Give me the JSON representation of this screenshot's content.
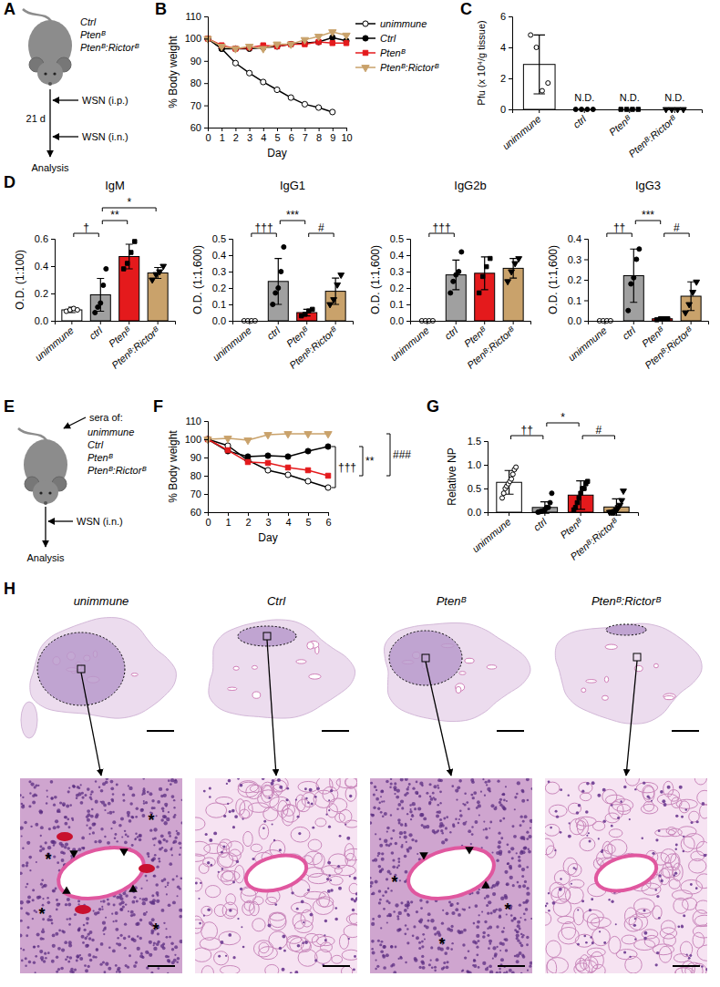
{
  "chart_data": [
    {
      "panel": "B",
      "type": "line",
      "x_label": "Day",
      "y_label": "% Body weight",
      "x": [
        0,
        1,
        2,
        3,
        4,
        5,
        6,
        7,
        8,
        9,
        10
      ],
      "xlim": [
        0,
        10
      ],
      "xticks": [
        0,
        1,
        2,
        3,
        4,
        5,
        6,
        7,
        8,
        9,
        10
      ],
      "ylim": [
        60,
        110
      ],
      "yticks": [
        60,
        70,
        80,
        90,
        100,
        110
      ],
      "legend": "right",
      "series": [
        {
          "name": "unimmune",
          "color": "#000000",
          "marker": "open-circle",
          "values": [
            100,
            95.5,
            89,
            84.5,
            80.5,
            77,
            73.5,
            70.5,
            69,
            67,
            null
          ]
        },
        {
          "name": "Ctrl",
          "color": "#000000",
          "marker": "circle",
          "values": [
            100,
            95.5,
            95.5,
            95.5,
            96,
            96.5,
            97.5,
            98,
            98.5,
            100.5,
            99
          ]
        },
        {
          "name": "Ptenᴮ",
          "color": "#e41a1c",
          "marker": "square",
          "values": [
            100,
            97,
            95.5,
            96,
            97,
            96.5,
            97.5,
            97.5,
            98.5,
            98,
            98
          ]
        },
        {
          "name": "Ptenᴮ:Rictorᴮ",
          "color": "#c9a26b",
          "marker": "triangle-down",
          "values": [
            100,
            96.5,
            95.5,
            96.5,
            95.5,
            97.5,
            97.5,
            99.5,
            101,
            103,
            101.5
          ]
        }
      ]
    },
    {
      "panel": "C",
      "type": "bar",
      "y_label": "Pfu (x 10⁴/g tissue)",
      "categories": [
        "unimmune",
        "ctrl",
        "Ptenᴮ",
        "Ptenᴮ:Rictorᴮ"
      ],
      "values": [
        2.9,
        0,
        0,
        0
      ],
      "errors": [
        1.9,
        0,
        0,
        0
      ],
      "points": [
        [
          4.8,
          4.0,
          1.2,
          1.7
        ],
        [
          0,
          0,
          0,
          0
        ],
        [
          0,
          0,
          0,
          0
        ],
        [
          0,
          0,
          0,
          0
        ]
      ],
      "colors": [
        "#ffffff",
        "#a0a0a0",
        "#e41a1c",
        "#c9a26b"
      ],
      "ylim": [
        0,
        6
      ],
      "yticks": [
        0,
        2,
        4,
        6
      ],
      "annotations": [
        {
          "x": 1,
          "text": "N.D."
        },
        {
          "x": 2,
          "text": "N.D."
        },
        {
          "x": 3,
          "text": "N.D."
        }
      ]
    },
    {
      "panel": "D",
      "type": "bar",
      "title": "IgM",
      "y_label": "O.D. (1:100)",
      "categories": [
        "unimmune",
        "ctrl",
        "Ptenᴮ",
        "Ptenᴮ:Rictorᴮ"
      ],
      "values": [
        0.08,
        0.19,
        0.47,
        0.35
      ],
      "errors": [
        0.02,
        0.12,
        0.09,
        0.04
      ],
      "points": [
        [
          0.07,
          0.08,
          0.09,
          0.08
        ],
        [
          0.06,
          0.1,
          0.13,
          0.26,
          0.38
        ],
        [
          0.38,
          0.42,
          0.5,
          0.58
        ],
        [
          0.3,
          0.34,
          0.36,
          0.4
        ]
      ],
      "colors": [
        "#ffffff",
        "#a0a0a0",
        "#e41a1c",
        "#c9a26b"
      ],
      "ylim": [
        0,
        0.6
      ],
      "yticks": [
        {
          "value": 0,
          "label": "0.0"
        },
        0.2,
        0.4,
        0.6
      ],
      "annotations": [
        {
          "from": 0,
          "to": 1,
          "text": "†"
        },
        {
          "from": 1,
          "to": 2,
          "text": "**"
        },
        {
          "from": 1,
          "to": 3,
          "text": "*"
        }
      ]
    },
    {
      "type": "bar",
      "title": "IgG1",
      "y_label": "O.D. (1:1,600)",
      "categories": [
        "unimmune",
        "ctrl",
        "Ptenᴮ",
        "Ptenᴮ:Rictorᴮ"
      ],
      "values": [
        0,
        0.24,
        0.05,
        0.18
      ],
      "errors": [
        0,
        0.14,
        0.02,
        0.08
      ],
      "points": [
        [
          0,
          0,
          0,
          0
        ],
        [
          0.1,
          0.17,
          0.2,
          0.3,
          0.45
        ],
        [
          0.03,
          0.04,
          0.06,
          0.07
        ],
        [
          0.1,
          0.13,
          0.22,
          0.28
        ]
      ],
      "colors": [
        "#ffffff",
        "#a0a0a0",
        "#e41a1c",
        "#c9a26b"
      ],
      "ylim": [
        0,
        0.5
      ],
      "yticks": [
        {
          "value": 0,
          "label": "0.0"
        },
        0.1,
        0.2,
        0.3,
        0.4,
        0.5
      ],
      "annotations": [
        {
          "from": 0,
          "to": 1,
          "text": "†††"
        },
        {
          "from": 1,
          "to": 2,
          "text": "***"
        },
        {
          "from": 2,
          "to": 3,
          "text": "#"
        }
      ]
    },
    {
      "type": "bar",
      "title": "IgG2b",
      "y_label": "O.D. (1:1,600)",
      "categories": [
        "unimmune",
        "ctrl",
        "Ptenᴮ",
        "Ptenᴮ:Rictorᴮ"
      ],
      "values": [
        0,
        0.28,
        0.29,
        0.32
      ],
      "errors": [
        0,
        0.09,
        0.1,
        0.06
      ],
      "points": [
        [
          0,
          0,
          0,
          0
        ],
        [
          0.17,
          0.24,
          0.28,
          0.3,
          0.42
        ],
        [
          0.17,
          0.27,
          0.33,
          0.38
        ],
        [
          0.24,
          0.3,
          0.35,
          0.38
        ]
      ],
      "colors": [
        "#ffffff",
        "#a0a0a0",
        "#e41a1c",
        "#c9a26b"
      ],
      "ylim": [
        0,
        0.5
      ],
      "yticks": [
        {
          "value": 0,
          "label": "0.0"
        },
        0.1,
        0.2,
        0.3,
        0.4,
        0.5
      ],
      "annotations": [
        {
          "from": 0,
          "to": 1,
          "text": "†††"
        }
      ]
    },
    {
      "type": "bar",
      "title": "IgG3",
      "y_label": "O.D. (1:1,600)",
      "categories": [
        "unimmune",
        "ctrl",
        "Ptenᴮ",
        "Ptenᴮ:Rictorᴮ"
      ],
      "values": [
        0,
        0.22,
        0.01,
        0.12
      ],
      "errors": [
        0,
        0.13,
        0.005,
        0.07
      ],
      "points": [
        [
          0,
          0,
          0,
          0
        ],
        [
          0.05,
          0.18,
          0.21,
          0.3,
          0.35
        ],
        [
          0.005,
          0.01,
          0.01,
          0.01
        ],
        [
          0.04,
          0.08,
          0.14,
          0.19
        ]
      ],
      "colors": [
        "#ffffff",
        "#a0a0a0",
        "#e41a1c",
        "#c9a26b"
      ],
      "ylim": [
        0,
        0.4
      ],
      "yticks": [
        {
          "value": 0,
          "label": "0.0"
        },
        0.1,
        0.2,
        0.3,
        0.4
      ],
      "annotations": [
        {
          "from": 0,
          "to": 1,
          "text": "††"
        },
        {
          "from": 1,
          "to": 2,
          "text": "***"
        },
        {
          "from": 2,
          "to": 3,
          "text": "#"
        }
      ]
    },
    {
      "panel": "F",
      "type": "line",
      "x_label": "Day",
      "y_label": "% Body weight",
      "x": [
        0,
        1,
        2,
        3,
        4,
        5,
        6
      ],
      "xlim": [
        0,
        6
      ],
      "xticks": [
        0,
        1,
        2,
        3,
        4,
        5,
        6
      ],
      "ylim": [
        60,
        110
      ],
      "yticks": [
        60,
        70,
        80,
        90,
        100,
        110
      ],
      "series": [
        {
          "color": "#000000",
          "marker": "open-circle",
          "values": [
            100,
            96.5,
            88.5,
            83,
            80.5,
            77,
            73.5
          ]
        },
        {
          "color": "#000000",
          "marker": "circle",
          "values": [
            100,
            93.5,
            90.5,
            91,
            90.5,
            93.5,
            96
          ]
        },
        {
          "color": "#e41a1c",
          "marker": "square",
          "values": [
            100,
            94,
            87.5,
            87,
            84.5,
            83,
            80
          ]
        },
        {
          "color": "#c9a26b",
          "marker": "triangle-down",
          "values": [
            100,
            100.5,
            99.5,
            102.5,
            103,
            103,
            103
          ]
        }
      ],
      "annotations": [
        {
          "from": 0,
          "to": 1,
          "text": "†††"
        },
        {
          "from": 1,
          "to": 2,
          "text": "**"
        },
        {
          "from": 2,
          "to": 3,
          "text": "###"
        }
      ]
    },
    {
      "panel": "G",
      "type": "bar",
      "y_label": "Relative NP",
      "categories": [
        "unimmune",
        "ctrl",
        "Ptenᴮ",
        "Ptenᴮ:Rictorᴮ"
      ],
      "values": [
        0.63,
        0.1,
        0.36,
        0.11
      ],
      "errors": [
        0.25,
        0.12,
        0.3,
        0.17
      ],
      "points": [
        [
          0.3,
          0.4,
          0.5,
          0.55,
          0.6,
          0.65,
          0.7,
          0.8,
          0.9,
          0.95
        ],
        [
          0,
          0.01,
          0.02,
          0.03,
          0.05,
          0.1,
          0.1,
          0.2,
          0.4
        ],
        [
          0.05,
          0.1,
          0.2,
          0.3,
          0.4,
          0.5,
          0.5,
          0.6,
          0.65
        ],
        [
          0,
          0,
          0,
          0.02,
          0.05,
          0.1,
          0.15,
          0.25,
          0.45
        ]
      ],
      "colors": [
        "#ffffff",
        "#a0a0a0",
        "#e41a1c",
        "#c9a26b"
      ],
      "ylim": [
        0,
        1.5
      ],
      "yticks": [
        {
          "value": 0,
          "label": "0.0"
        },
        0.5,
        {
          "value": 1,
          "label": "1.0"
        },
        1.5
      ],
      "annotations": [
        {
          "from": 0,
          "to": 1,
          "text": "††"
        },
        {
          "from": 1,
          "to": 2,
          "text": "*"
        },
        {
          "from": 2,
          "to": 3,
          "text": "#"
        }
      ]
    }
  ],
  "diagrams": {
    "A": {
      "panel": "A",
      "groups": [
        "Ctrl",
        "Ptenᴮ",
        "Ptenᴮ:Rictorᴮ"
      ],
      "steps": [
        "WSN (i.p.)",
        "WSN (i.n.)"
      ],
      "interval": "21 d",
      "end": "Analysis"
    },
    "E": {
      "panel": "E",
      "header": "sera of:",
      "groups": [
        "unimmune",
        "Ctrl",
        "Ptenᴮ",
        "Ptenᴮ:Rictorᴮ"
      ],
      "step": "WSN (i.n.)",
      "end": "Analysis"
    },
    "H": {
      "panel": "H",
      "labels": [
        "unimmune",
        "Ctrl",
        "Ptenᴮ",
        "Ptenᴮ:Rictorᴮ"
      ],
      "lesion_marker": "*"
    }
  }
}
